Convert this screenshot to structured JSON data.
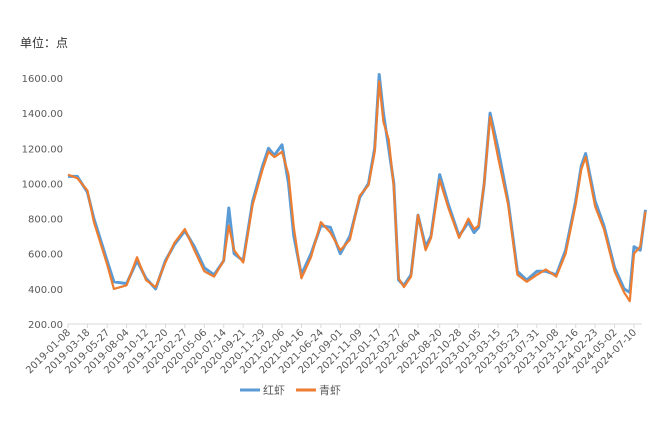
{
  "unit_label": "单位：点",
  "colors": {
    "red_shrimp": "#5B9BD5",
    "green_shrimp": "#ED7D31",
    "axis": "#D9D9D9"
  },
  "chart_data": {
    "type": "line",
    "ylim": [
      200,
      1600
    ],
    "yticks": [
      "200.00",
      "400.00",
      "600.00",
      "800.00",
      "1000.00",
      "1200.00",
      "1400.00",
      "1600.00"
    ],
    "x_tick_labels": [
      "2019-01-08",
      "2019-03-18",
      "2019-05-27",
      "2019-08-04",
      "2019-10-12",
      "2019-12-20",
      "2020-02-27",
      "2020-05-06",
      "2020-07-14",
      "2020-09-21",
      "2020-11-29",
      "2021-02-06",
      "2021-04-16",
      "2021-06-24",
      "2021-09-01",
      "2021-11-09",
      "2022-01-17",
      "2022-03-27",
      "2022-06-04",
      "2022-08-20",
      "2022-10-28",
      "2023-01-05",
      "2023-03-15",
      "2023-05-23",
      "2023-07-31",
      "2023-10-08",
      "2023-12-16",
      "2024-02-23",
      "2024-05-02",
      "2024-07-10"
    ],
    "grid": false,
    "legend_position": "bottom",
    "series": [
      {
        "name": "红虾",
        "color": "#5B9BD5",
        "x": [
          "2019-01-08",
          "2019-02-10",
          "2019-03-18",
          "2019-04-10",
          "2019-05-27",
          "2019-06-20",
          "2019-08-04",
          "2019-09-10",
          "2019-10-12",
          "2019-11-15",
          "2019-12-20",
          "2020-01-20",
          "2020-02-27",
          "2020-04-01",
          "2020-05-06",
          "2020-06-10",
          "2020-07-14",
          "2020-08-01",
          "2020-08-20",
          "2020-09-21",
          "2020-10-25",
          "2020-11-29",
          "2020-12-20",
          "2021-01-10",
          "2021-02-06",
          "2021-03-01",
          "2021-03-20",
          "2021-04-16",
          "2021-05-20",
          "2021-06-24",
          "2021-07-28",
          "2021-09-01",
          "2021-10-05",
          "2021-11-09",
          "2021-12-10",
          "2022-01-01",
          "2022-01-17",
          "2022-02-01",
          "2022-02-20",
          "2022-03-10",
          "2022-03-27",
          "2022-04-15",
          "2022-05-10",
          "2022-06-04",
          "2022-07-01",
          "2022-07-20",
          "2022-08-20",
          "2022-09-20",
          "2022-10-28",
          "2022-11-30",
          "2022-12-20",
          "2023-01-05",
          "2023-01-25",
          "2023-02-15",
          "2023-03-15",
          "2023-04-20",
          "2023-05-23",
          "2023-06-25",
          "2023-07-31",
          "2023-09-01",
          "2023-10-08",
          "2023-11-10",
          "2023-12-16",
          "2024-01-05",
          "2024-01-20",
          "2024-02-23",
          "2024-03-25",
          "2024-05-02",
          "2024-06-05",
          "2024-06-25",
          "2024-07-10",
          "2024-08-01",
          "2024-08-20"
        ],
        "values": [
          1040,
          1040,
          950,
          800,
          560,
          440,
          430,
          560,
          460,
          400,
          560,
          650,
          730,
          640,
          520,
          480,
          560,
          860,
          600,
          560,
          900,
          1100,
          1200,
          1160,
          1220,
          1000,
          700,
          480,
          600,
          760,
          750,
          600,
          700,
          920,
          1000,
          1200,
          1620,
          1400,
          1200,
          1000,
          450,
          420,
          480,
          820,
          640,
          700,
          1050,
          880,
          700,
          780,
          720,
          750,
          1000,
          1400,
          1200,
          900,
          500,
          450,
          500,
          500,
          480,
          620,
          900,
          1100,
          1170,
          900,
          760,
          520,
          400,
          380,
          640,
          620,
          850
        ]
      },
      {
        "name": "青虾",
        "color": "#ED7D31",
        "x": [
          "2019-01-08",
          "2019-02-10",
          "2019-03-18",
          "2019-04-10",
          "2019-05-27",
          "2019-06-20",
          "2019-08-04",
          "2019-09-10",
          "2019-10-12",
          "2019-11-15",
          "2019-12-20",
          "2020-01-20",
          "2020-02-27",
          "2020-04-01",
          "2020-05-06",
          "2020-06-10",
          "2020-07-14",
          "2020-08-01",
          "2020-08-20",
          "2020-09-21",
          "2020-10-25",
          "2020-11-29",
          "2020-12-20",
          "2021-01-10",
          "2021-02-06",
          "2021-03-01",
          "2021-03-20",
          "2021-04-16",
          "2021-05-20",
          "2021-06-24",
          "2021-07-28",
          "2021-09-01",
          "2021-10-05",
          "2021-11-09",
          "2021-12-10",
          "2022-01-01",
          "2022-01-17",
          "2022-02-01",
          "2022-02-20",
          "2022-03-10",
          "2022-03-27",
          "2022-04-15",
          "2022-05-10",
          "2022-06-04",
          "2022-07-01",
          "2022-07-20",
          "2022-08-20",
          "2022-09-20",
          "2022-10-28",
          "2022-11-30",
          "2022-12-20",
          "2023-01-05",
          "2023-01-25",
          "2023-02-15",
          "2023-03-15",
          "2023-04-20",
          "2023-05-23",
          "2023-06-25",
          "2023-07-31",
          "2023-09-01",
          "2023-10-08",
          "2023-11-10",
          "2023-12-16",
          "2024-01-05",
          "2024-01-20",
          "2024-02-23",
          "2024-03-25",
          "2024-05-02",
          "2024-06-05",
          "2024-06-25",
          "2024-07-10",
          "2024-08-01",
          "2024-08-20"
        ],
        "values": [
          1050,
          1030,
          960,
          780,
          540,
          400,
          420,
          580,
          450,
          410,
          550,
          660,
          740,
          620,
          500,
          470,
          560,
          760,
          620,
          550,
          880,
          1080,
          1180,
          1150,
          1180,
          1050,
          750,
          460,
          580,
          780,
          720,
          620,
          680,
          930,
          990,
          1180,
          1580,
          1350,
          1250,
          980,
          460,
          410,
          470,
          820,
          620,
          690,
          1020,
          860,
          690,
          800,
          740,
          760,
          1000,
          1380,
          1150,
          880,
          480,
          440,
          480,
          510,
          470,
          600,
          880,
          1080,
          1150,
          870,
          740,
          500,
          380,
          330,
          600,
          640,
          840
        ]
      }
    ]
  }
}
